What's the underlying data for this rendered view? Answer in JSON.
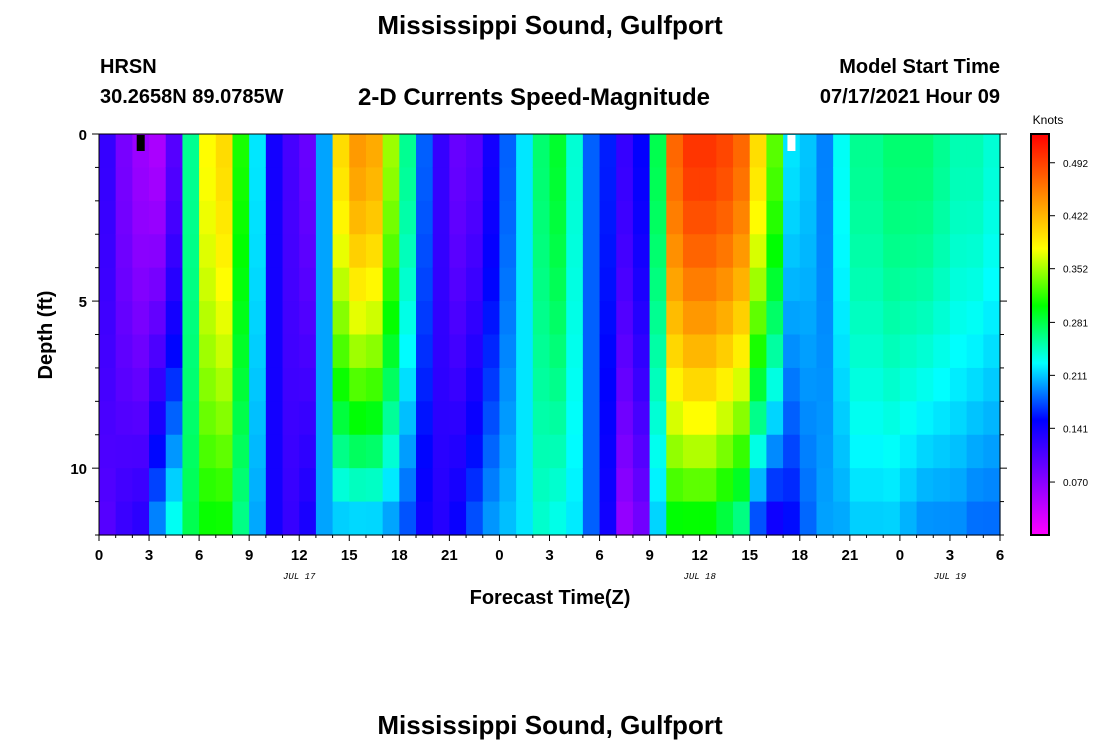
{
  "header": {
    "title": "Mississippi Sound, Gulfport",
    "station": "HRSN",
    "coords": "30.2658N  89.0785W",
    "subtitle": "2-D Currents Speed-Magnitude",
    "model_label": "Model Start Time",
    "model_time": "07/17/2021 Hour 09"
  },
  "footer": {
    "title": "Mississippi Sound, Gulfport"
  },
  "chart_data": {
    "type": "heatmap",
    "title": "2-D Currents Speed-Magnitude",
    "xlabel": "Forecast Time(Z)",
    "ylabel": "Depth (ft)",
    "x_start_hour": 0,
    "x_end_hour": 54,
    "x_step_hours": 1,
    "xticks": [
      "0",
      "3",
      "6",
      "9",
      "12",
      "15",
      "18",
      "21",
      "0",
      "3",
      "6",
      "9",
      "12",
      "15",
      "18",
      "21",
      "0",
      "3",
      "6"
    ],
    "date_labels": [
      {
        "text": "JUL 17",
        "hour": 12
      },
      {
        "text": "JUL 18",
        "hour": 36
      },
      {
        "text": "JUL 19",
        "hour": 51
      }
    ],
    "ylim": [
      0,
      12
    ],
    "yticks": [
      "0",
      "5",
      "10"
    ],
    "depth_levels_ft": [
      0.5,
      1.5,
      2.5,
      3.5,
      4.5,
      5.5,
      6.5,
      7.5,
      8.5,
      9.5,
      10.5,
      11.5
    ],
    "colorbar": {
      "units": "Knots",
      "min": 0.0,
      "max": 0.53,
      "ticks": [
        "0.070",
        "0.141",
        "0.211",
        "0.281",
        "0.352",
        "0.422",
        "0.492"
      ],
      "colors": [
        "#ff00ff",
        "#8000ff",
        "#0000ff",
        "#00ffff",
        "#00ff00",
        "#ffff00",
        "#ff8000",
        "#ff0000"
      ]
    },
    "markers": [
      {
        "hour": 2.5,
        "color": "#000000"
      },
      {
        "hour": 41.5,
        "color": "#ffffff"
      }
    ],
    "speed_surface_knots": [
      0.12,
      0.08,
      0.06,
      0.05,
      0.1,
      0.26,
      0.38,
      0.4,
      0.31,
      0.22,
      0.14,
      0.11,
      0.09,
      0.2,
      0.4,
      0.44,
      0.43,
      0.35,
      0.26,
      0.18,
      0.12,
      0.09,
      0.1,
      0.14,
      0.18,
      0.22,
      0.27,
      0.29,
      0.24,
      0.18,
      0.16,
      0.12,
      0.15,
      0.28,
      0.47,
      0.5,
      0.5,
      0.49,
      0.47,
      0.4,
      0.33,
      0.22,
      0.21,
      0.19,
      0.23,
      0.26,
      0.26,
      0.27,
      0.27,
      0.27,
      0.26,
      0.25,
      0.25,
      0.24
    ],
    "speed_bottom_knots": [
      0.1,
      0.12,
      0.13,
      0.2,
      0.24,
      0.28,
      0.3,
      0.3,
      0.26,
      0.2,
      0.14,
      0.12,
      0.14,
      0.2,
      0.2,
      0.2,
      0.2,
      0.19,
      0.17,
      0.14,
      0.13,
      0.15,
      0.18,
      0.2,
      0.21,
      0.22,
      0.24,
      0.23,
      0.22,
      0.18,
      0.14,
      0.06,
      0.08,
      0.21,
      0.29,
      0.29,
      0.29,
      0.27,
      0.25,
      0.16,
      0.13,
      0.15,
      0.18,
      0.2,
      0.2,
      0.21,
      0.21,
      0.21,
      0.2,
      0.19,
      0.19,
      0.19,
      0.18,
      0.18
    ]
  }
}
